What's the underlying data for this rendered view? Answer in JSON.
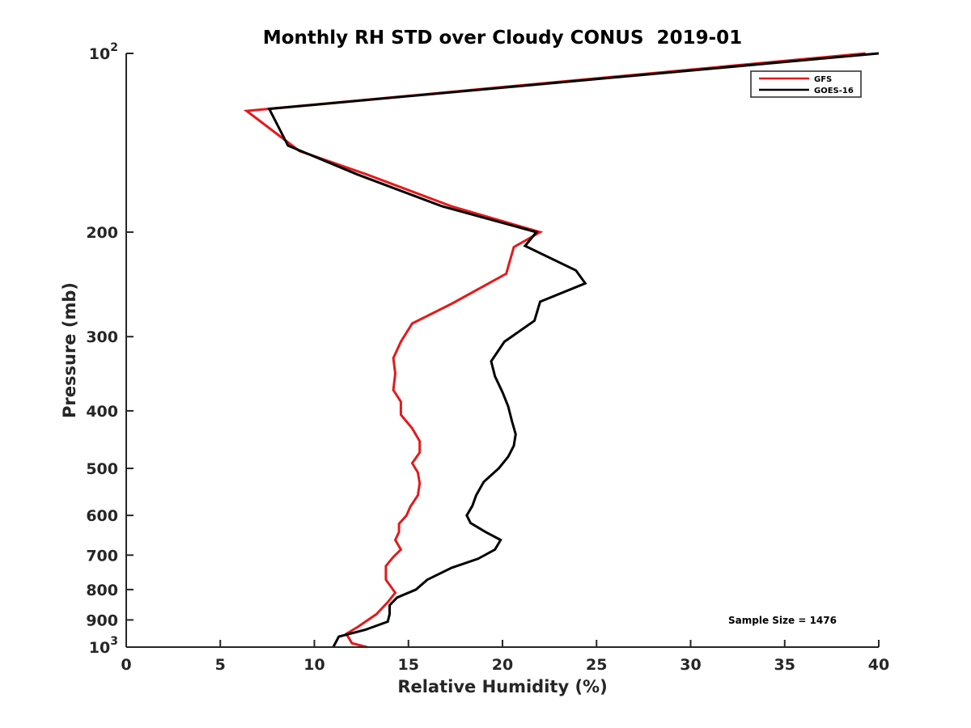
{
  "chart_data": {
    "type": "line",
    "title": "Monthly RH STD over Cloudy CONUS  2019-01",
    "xlabel": "Relative Humidity (%)",
    "ylabel": "Pressure (mb)",
    "xlim": [
      0,
      40
    ],
    "ylim": [
      100,
      1000
    ],
    "yscale": "log",
    "y_reversed": true,
    "grid": false,
    "legend_position": "top-right",
    "x_ticks": [
      "0",
      "5",
      "10",
      "15",
      "20",
      "25",
      "30",
      "35",
      "40"
    ],
    "y_ticks": [
      {
        "value": 100,
        "label": "10",
        "sup": "2"
      },
      {
        "value": 200,
        "label": "200",
        "sup": ""
      },
      {
        "value": 300,
        "label": "300",
        "sup": ""
      },
      {
        "value": 400,
        "label": "400",
        "sup": ""
      },
      {
        "value": 500,
        "label": "500",
        "sup": ""
      },
      {
        "value": 600,
        "label": "600",
        "sup": ""
      },
      {
        "value": 700,
        "label": "700",
        "sup": ""
      },
      {
        "value": 800,
        "label": "800",
        "sup": ""
      },
      {
        "value": 900,
        "label": "900",
        "sup": ""
      },
      {
        "value": 1000,
        "label": "10",
        "sup": "3"
      }
    ],
    "annotation": "Sample Size = 1476",
    "series": [
      {
        "name": "GFS",
        "color": "#e31a1c",
        "points": [
          [
            39.3,
            100
          ],
          [
            6.4,
            125
          ],
          [
            9.2,
            146
          ],
          [
            12.8,
            160
          ],
          [
            17.3,
            181
          ],
          [
            22.0,
            200
          ],
          [
            20.6,
            212
          ],
          [
            20.2,
            235
          ],
          [
            17.3,
            264
          ],
          [
            15.2,
            285
          ],
          [
            14.6,
            306
          ],
          [
            14.2,
            326
          ],
          [
            14.3,
            346
          ],
          [
            14.2,
            369
          ],
          [
            14.6,
            386
          ],
          [
            14.6,
            406
          ],
          [
            15.2,
            428
          ],
          [
            15.6,
            450
          ],
          [
            15.6,
            470
          ],
          [
            15.2,
            490
          ],
          [
            15.5,
            508
          ],
          [
            15.6,
            530
          ],
          [
            15.5,
            555
          ],
          [
            15.1,
            580
          ],
          [
            14.9,
            600
          ],
          [
            14.5,
            620
          ],
          [
            14.5,
            640
          ],
          [
            14.3,
            660
          ],
          [
            14.6,
            685
          ],
          [
            14.2,
            705
          ],
          [
            13.8,
            730
          ],
          [
            13.8,
            770
          ],
          [
            14.3,
            810
          ],
          [
            13.9,
            840
          ],
          [
            13.6,
            860
          ],
          [
            13.3,
            880
          ],
          [
            12.3,
            925
          ],
          [
            11.7,
            950
          ],
          [
            12.0,
            985
          ],
          [
            12.8,
            1000
          ]
        ]
      },
      {
        "name": "GOES-16",
        "color": "#000000",
        "points": [
          [
            40.0,
            100
          ],
          [
            7.6,
            124
          ],
          [
            8.6,
            143
          ],
          [
            12.3,
            160
          ],
          [
            16.8,
            181
          ],
          [
            21.8,
            200
          ],
          [
            21.2,
            211
          ],
          [
            23.9,
            232
          ],
          [
            24.4,
            244
          ],
          [
            22.0,
            262
          ],
          [
            21.7,
            282
          ],
          [
            20.1,
            306
          ],
          [
            19.4,
            330
          ],
          [
            19.6,
            350
          ],
          [
            20.0,
            372
          ],
          [
            20.3,
            393
          ],
          [
            20.5,
            416
          ],
          [
            20.7,
            438
          ],
          [
            20.6,
            458
          ],
          [
            20.3,
            478
          ],
          [
            19.8,
            500
          ],
          [
            19.0,
            527
          ],
          [
            18.6,
            555
          ],
          [
            18.4,
            578
          ],
          [
            18.1,
            600
          ],
          [
            18.3,
            618
          ],
          [
            19.1,
            640
          ],
          [
            19.9,
            660
          ],
          [
            19.6,
            685
          ],
          [
            18.7,
            710
          ],
          [
            17.3,
            735
          ],
          [
            16.0,
            770
          ],
          [
            15.4,
            800
          ],
          [
            14.4,
            825
          ],
          [
            14.0,
            850
          ],
          [
            14.0,
            880
          ],
          [
            13.9,
            906
          ],
          [
            12.7,
            935
          ],
          [
            11.3,
            960
          ],
          [
            11.0,
            1000
          ]
        ]
      }
    ]
  }
}
